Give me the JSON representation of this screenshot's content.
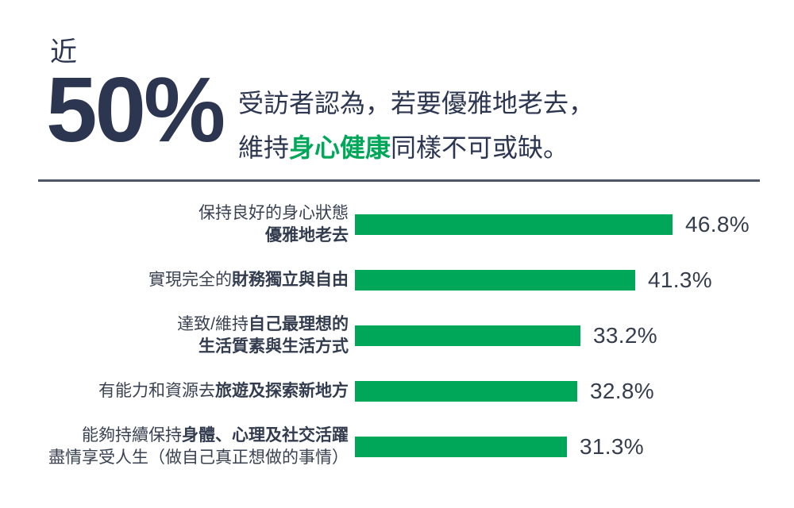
{
  "header": {
    "prefix": "近",
    "big_stat": "50%",
    "headline": {
      "line1": "受訪者認為，若要優雅地老去，",
      "line2_pre": "維持",
      "line2_highlight": "身心健康",
      "line2_post": "同樣不可或缺。"
    }
  },
  "colors": {
    "brand_green": "#00A758",
    "dark_navy": "#2C3650",
    "label_text": "#3A4252",
    "divider_gray": "#4E5768"
  },
  "chart_data": {
    "type": "bar",
    "orientation": "horizontal",
    "title": "近50% 受訪者認為，若要優雅地老去，維持身心健康同樣不可或缺。",
    "value_unit": "%",
    "xlim": [
      0,
      50
    ],
    "grid": false,
    "legend": false,
    "bar_color": "#00A758",
    "categories": [
      "保持良好的身心狀態 優雅地老去",
      "實現完全的財務獨立與自由",
      "達致/維持自己最理想的生活質素與生活方式",
      "有能力和資源去旅遊及探索新地方",
      "能夠持續保持身體、心理及社交活躍 盡情享受人生（做自己真正想做的事情）"
    ],
    "values": [
      46.8,
      41.3,
      33.2,
      32.8,
      31.3
    ],
    "bars": [
      {
        "value": 46.8,
        "display": "46.8%",
        "label_lines": [
          [
            {
              "text": "保持良好的身心狀態",
              "bold": false
            }
          ],
          [
            {
              "text": "優雅地老去",
              "bold": true
            }
          ]
        ]
      },
      {
        "value": 41.3,
        "display": "41.3%",
        "label_lines": [
          [
            {
              "text": "實現完全的",
              "bold": false
            },
            {
              "text": "財務獨立與自由",
              "bold": true
            }
          ]
        ]
      },
      {
        "value": 33.2,
        "display": "33.2%",
        "label_lines": [
          [
            {
              "text": "達致/維持",
              "bold": false
            },
            {
              "text": "自己最理想的",
              "bold": true
            }
          ],
          [
            {
              "text": "生活質素與生活方式",
              "bold": true
            }
          ]
        ]
      },
      {
        "value": 32.8,
        "display": "32.8%",
        "label_lines": [
          [
            {
              "text": "有能力和資源去",
              "bold": false
            },
            {
              "text": "旅遊及探索新地方",
              "bold": true
            }
          ]
        ]
      },
      {
        "value": 31.3,
        "display": "31.3%",
        "label_lines": [
          [
            {
              "text": "能夠持續保持",
              "bold": false
            },
            {
              "text": "身體、心理及社交活躍",
              "bold": true
            }
          ],
          [
            {
              "text": "盡情享受人生（做自己真正想做的事情）",
              "bold": false
            }
          ]
        ]
      }
    ]
  }
}
